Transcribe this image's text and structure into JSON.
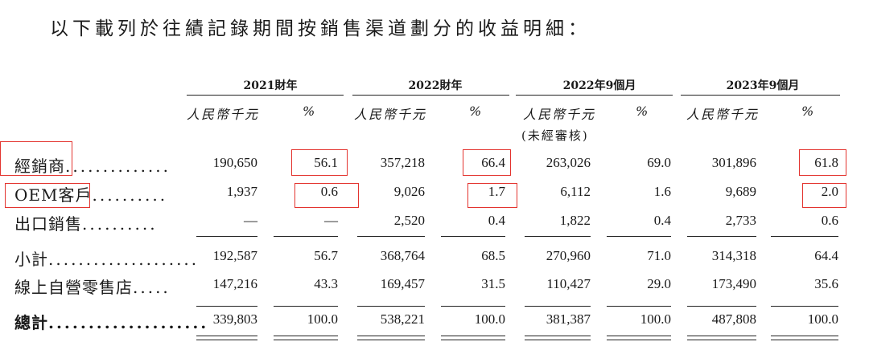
{
  "intro": "以下載列於往績記錄期間按銷售渠道劃分的收益明細：",
  "periods": [
    "2021財年",
    "2022財年",
    "2022年9個月",
    "2023年9個月"
  ],
  "unit_rmb": "人民幣千元",
  "unit_pct": "%",
  "unaudited": "(未經審核)",
  "rows": [
    {
      "label": "經銷商",
      "dots": "..............",
      "values": [
        "190,650",
        "56.1",
        "357,218",
        "66.4",
        "263,026",
        "69.0",
        "301,896",
        "61.8"
      ]
    },
    {
      "label": "OEM客戶",
      "dots": "..........",
      "values": [
        "1,937",
        "0.6",
        "9,026",
        "1.7",
        "6,112",
        "1.6",
        "9,689",
        "2.0"
      ]
    },
    {
      "label": "出口銷售",
      "dots": "..........",
      "values": [
        "—",
        "—",
        "2,520",
        "0.4",
        "1,822",
        "0.4",
        "2,733",
        "0.6"
      ]
    },
    {
      "label": "小計",
      "dots": "....................",
      "values": [
        "192,587",
        "56.7",
        "368,764",
        "68.5",
        "270,960",
        "71.0",
        "314,318",
        "64.4"
      ]
    },
    {
      "label": "線上自營零售店",
      "dots": ".....",
      "values": [
        "147,216",
        "43.3",
        "169,457",
        "31.5",
        "110,427",
        "29.0",
        "173,490",
        "35.6"
      ]
    },
    {
      "label": "總計",
      "dots": "....................",
      "values": [
        "339,803",
        "100.0",
        "538,221",
        "100.0",
        "381,387",
        "100.0",
        "487,808",
        "100.0"
      ]
    }
  ],
  "highlight_color": "#e3342f"
}
